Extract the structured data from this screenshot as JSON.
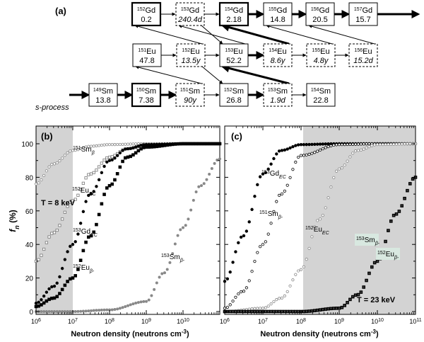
{
  "panel_a": {
    "label": "(a)",
    "process_label": "s-process",
    "nuclides": [
      {
        "id": "gd152",
        "mass": "152",
        "sym": "Gd",
        "val": "0.2",
        "style": "bold",
        "italic": false
      },
      {
        "id": "gd153",
        "mass": "153",
        "sym": "Gd",
        "val": "240.4d",
        "style": "dash",
        "italic": true
      },
      {
        "id": "gd154",
        "mass": "154",
        "sym": "Gd",
        "val": "2.18",
        "style": "bold",
        "italic": false
      },
      {
        "id": "gd155",
        "mass": "155",
        "sym": "Gd",
        "val": "14.8",
        "style": "solid",
        "italic": false
      },
      {
        "id": "gd156",
        "mass": "156",
        "sym": "Gd",
        "val": "20.5",
        "style": "solid",
        "italic": false
      },
      {
        "id": "gd157",
        "mass": "157",
        "sym": "Gd",
        "val": "15.7",
        "style": "solid",
        "italic": false
      },
      {
        "id": "eu151",
        "mass": "151",
        "sym": "Eu",
        "val": "47.8",
        "style": "solid",
        "italic": false
      },
      {
        "id": "eu152",
        "mass": "152",
        "sym": "Eu",
        "val": "13.5y",
        "style": "dash",
        "italic": true
      },
      {
        "id": "eu153",
        "mass": "153",
        "sym": "Eu",
        "val": "52.2",
        "style": "solid",
        "italic": false
      },
      {
        "id": "eu154",
        "mass": "154",
        "sym": "Eu",
        "val": "8.6y",
        "style": "dash",
        "italic": true
      },
      {
        "id": "eu155",
        "mass": "155",
        "sym": "Eu",
        "val": "4.8y",
        "style": "dash",
        "italic": true
      },
      {
        "id": "eu156",
        "mass": "156",
        "sym": "Eu",
        "val": "15.2d",
        "style": "dash",
        "italic": true
      },
      {
        "id": "sm149",
        "mass": "149",
        "sym": "Sm",
        "val": "13.8",
        "style": "solid",
        "italic": false
      },
      {
        "id": "sm150",
        "mass": "150",
        "sym": "Sm",
        "val": "7.38",
        "style": "bold",
        "italic": false
      },
      {
        "id": "sm151",
        "mass": "151",
        "sym": "Sm",
        "val": "90y",
        "style": "dash",
        "italic": true
      },
      {
        "id": "sm152",
        "mass": "152",
        "sym": "Sm",
        "val": "26.8",
        "style": "solid",
        "italic": false
      },
      {
        "id": "sm153",
        "mass": "153",
        "sym": "Sm",
        "val": "1.9d",
        "style": "dash",
        "italic": true
      },
      {
        "id": "sm154",
        "mass": "154",
        "sym": "Sm",
        "val": "22.8",
        "style": "solid",
        "italic": false
      }
    ]
  },
  "panel_b": {
    "label": "(b)",
    "temperature": "T = 8 keV",
    "curve_labels": {
      "sm151": {
        "mass": "151",
        "sym": "Sm",
        "sub": "β"
      },
      "eu152": {
        "mass": "152",
        "sym": "Eu",
        "sub": "EC"
      },
      "gd153": {
        "mass": "153",
        "sym": "Gd",
        "sub": "EC"
      },
      "eu152b": {
        "mass": "152",
        "sym": "Eu",
        "sub": "β-"
      },
      "sm153": {
        "mass": "153",
        "sym": "Sm",
        "sub": "β-"
      }
    },
    "x_ticks": [
      "10",
      "10",
      "10",
      "10",
      "10"
    ],
    "x_exps": [
      "6",
      "7",
      "8",
      "9",
      "10"
    ]
  },
  "panel_c": {
    "label": "(c)",
    "temperature": "T = 23 keV",
    "curve_labels": {
      "gd153": {
        "mass": "153",
        "sym": "Gd",
        "sub": "EC"
      },
      "sm151": {
        "mass": "151",
        "sym": "Sm",
        "sub": "β-"
      },
      "eu152": {
        "mass": "152",
        "sym": "Eu",
        "sub": "EC"
      },
      "sm153": {
        "mass": "153",
        "sym": "Sm",
        "sub": "β-"
      },
      "eu152b": {
        "mass": "152",
        "sym": "Eu",
        "sub": "β-"
      }
    },
    "x_ticks": [
      "10",
      "10",
      "10",
      "10",
      "10",
      "10"
    ],
    "x_exps": [
      "6",
      "7",
      "8",
      "9",
      "10",
      "11"
    ]
  },
  "y_axis": {
    "label_f": "f",
    "label_n": "n",
    "label_unit": " (%)",
    "ticks": [
      "0",
      "20",
      "40",
      "60",
      "80",
      "100"
    ]
  },
  "x_axis_label": "Neutron density (neutrons cm",
  "x_axis_label_exp": "-3",
  "x_axis_label_end": ")",
  "chart_data": [
    {
      "type": "scatter",
      "title": "",
      "xlabel": "Neutron density (neutrons cm-3)",
      "ylabel": "fn (%)",
      "xscale": "log",
      "xlim": [
        1000000,
        100000000000
      ],
      "ylim": [
        0,
        110
      ],
      "shaded_x": [
        1000000,
        10000000
      ],
      "series": [
        {
          "name": "151Smβ",
          "x": [
            1000000.0,
            3000000.0,
            10000000.0,
            30000000.0,
            100000000.0,
            1000000000.0,
            10000000000.0,
            100000000000.0
          ],
          "y": [
            76,
            88,
            96,
            98.5,
            99.5,
            100,
            100,
            100
          ]
        },
        {
          "name": "152EuEC",
          "x": [
            1000000.0,
            3000000.0,
            10000000.0,
            30000000.0,
            100000000.0,
            300000000.0,
            1000000000.0,
            10000000000.0,
            100000000000.0
          ],
          "y": [
            30,
            47,
            66,
            82,
            92,
            97,
            99,
            100,
            100
          ]
        },
        {
          "name": "153GdEC",
          "x": [
            1000000.0,
            3000000.0,
            10000000.0,
            30000000.0,
            100000000.0,
            300000000.0,
            1000000000.0,
            10000000000.0,
            100000000000.0
          ],
          "y": [
            5,
            15,
            40,
            70,
            90,
            97,
            99.5,
            100,
            100
          ]
        },
        {
          "name": "152Euβ-",
          "x": [
            1000000.0,
            3000000.0,
            10000000.0,
            30000000.0,
            100000000.0,
            300000000.0,
            1000000000.0,
            10000000000.0,
            100000000000.0
          ],
          "y": [
            3,
            8,
            20,
            45,
            75,
            92,
            98,
            100,
            100
          ]
        },
        {
          "name": "153Smβ-",
          "x": [
            1000000.0,
            10000000.0,
            100000000.0,
            1000000000.0,
            3000000000.0,
            10000000000.0,
            30000000000.0,
            100000000000.0
          ],
          "y": [
            0,
            0,
            1,
            6,
            23,
            50,
            75,
            91
          ]
        }
      ]
    },
    {
      "type": "scatter",
      "title": "",
      "xlabel": "Neutron density (neutrons cm-3)",
      "ylabel": "",
      "xscale": "log",
      "xlim": [
        1000000,
        100000000000
      ],
      "ylim": [
        0,
        110
      ],
      "shaded_x": [
        100000000,
        100000000000
      ],
      "series": [
        {
          "name": "153GdEC",
          "x": [
            1000000.0,
            3000000.0,
            10000000.0,
            30000000.0,
            100000000.0,
            1000000000.0,
            10000000000.0,
            100000000000.0
          ],
          "y": [
            18,
            45,
            82,
            96,
            99.5,
            100,
            100,
            100
          ]
        },
        {
          "name": "151Smβ-",
          "x": [
            1000000.0,
            3000000.0,
            10000000.0,
            30000000.0,
            100000000.0,
            1000000000.0,
            10000000000.0,
            100000000000.0
          ],
          "y": [
            2,
            12,
            40,
            70,
            93,
            99.5,
            100,
            100
          ]
        },
        {
          "name": "152EuEC",
          "x": [
            1000000.0,
            10000000.0,
            30000000.0,
            100000000.0,
            300000000.0,
            1000000000.0,
            3000000000.0,
            10000000000.0,
            100000000000.0
          ],
          "y": [
            0,
            2,
            8,
            25,
            55,
            85,
            96,
            99.5,
            100
          ]
        },
        {
          "name": "153Smβ-",
          "x": [
            1000000.0,
            10000000.0,
            100000000.0,
            1000000000.0,
            3000000000.0,
            10000000000.0,
            30000000000.0,
            100000000000.0
          ],
          "y": [
            0,
            0,
            0,
            2,
            10,
            30,
            58,
            80
          ]
        },
        {
          "name": "152Euβ-",
          "x": [
            1000000.0,
            10000000.0,
            100000000.0,
            1000000000.0,
            3000000000.0,
            10000000000.0,
            30000000000.0,
            100000000000.0
          ],
          "y": [
            0,
            0,
            0,
            2,
            10,
            30,
            58,
            80
          ]
        }
      ]
    }
  ]
}
